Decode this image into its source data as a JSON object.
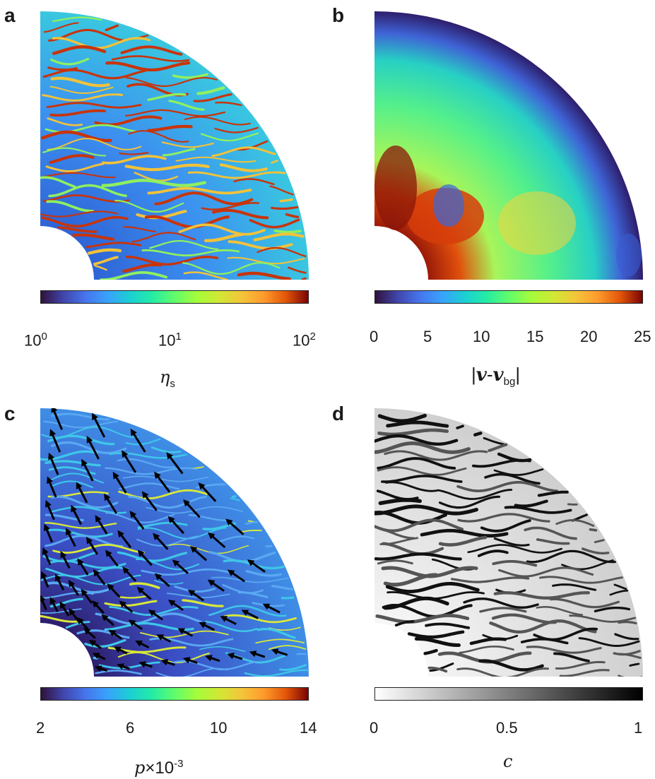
{
  "chart_data": [
    {
      "type": "heatmap",
      "panel": "a",
      "colormap": "turbo",
      "scale": "log",
      "clim": [
        1,
        100
      ],
      "ticks": [
        {
          "base": "10",
          "exp": "0"
        },
        {
          "base": "10",
          "exp": "1"
        },
        {
          "base": "10",
          "exp": "2"
        }
      ],
      "label": {
        "symbol": "η",
        "sub": "s"
      }
    },
    {
      "type": "heatmap",
      "panel": "b",
      "colormap": "turbo",
      "scale": "linear",
      "clim": [
        0,
        25
      ],
      "ticks": [
        "0",
        "5",
        "10",
        "15",
        "20",
        "25"
      ],
      "label": {
        "open": "|",
        "v1": "v",
        "dash": "-",
        "v2": "v",
        "sub": "bg",
        "close": "|"
      }
    },
    {
      "type": "heatmap",
      "panel": "c",
      "colormap": "turbo",
      "scale": "linear",
      "clim": [
        2,
        14
      ],
      "overlay": "velocity quiver arrows",
      "ticks": [
        "2",
        "6",
        "10",
        "14"
      ],
      "label": {
        "symbol": "p",
        "times": "×",
        "base": "10",
        "exp": "-3"
      }
    },
    {
      "type": "heatmap",
      "panel": "d",
      "colormap": "gray",
      "scale": "linear",
      "clim": [
        0,
        1
      ],
      "ticks": [
        "0",
        "0.5",
        "1"
      ],
      "label": {
        "symbol": "c"
      }
    }
  ],
  "panels": {
    "a": "a",
    "b": "b",
    "c": "c",
    "d": "d"
  },
  "colors": {
    "turbo_low": "#30123b",
    "turbo_mid": "#1ae4b6",
    "turbo_high": "#7a0403",
    "gray_low": "#ffffff",
    "gray_high": "#000000"
  }
}
